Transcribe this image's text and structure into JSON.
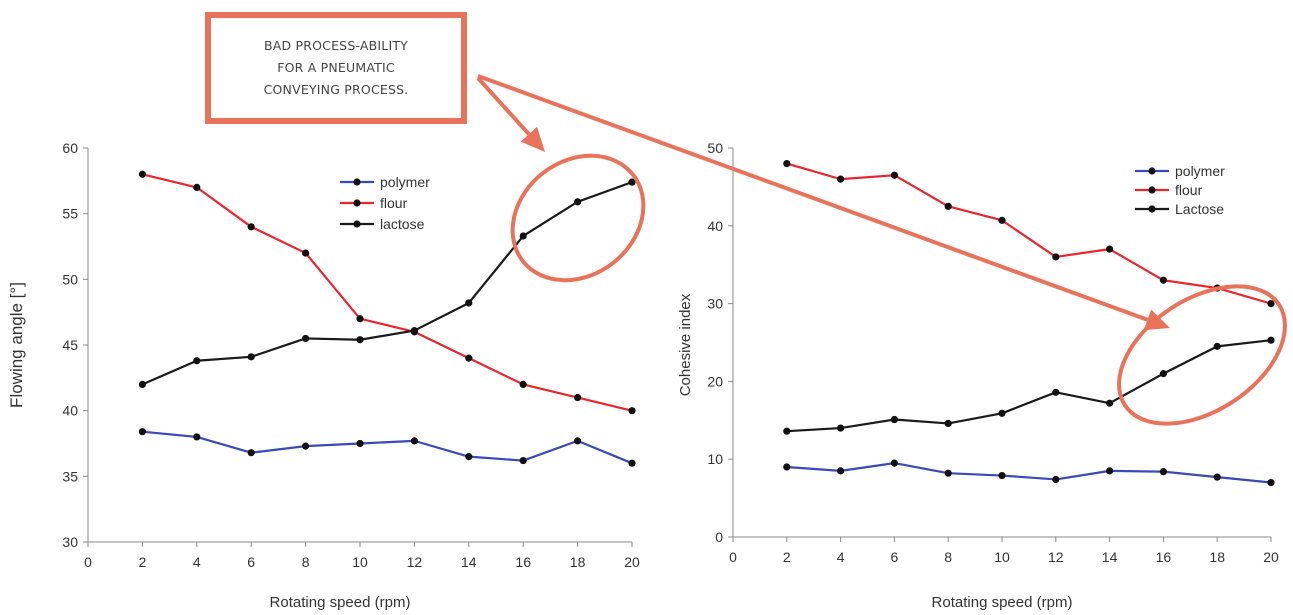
{
  "callout": {
    "lines": [
      "BAD PROCESS-ABILITY",
      "FOR A PNEUMATIC",
      "CONVEYING PROCESS."
    ]
  },
  "colors": {
    "polymer": "#3a49b8",
    "flour": "#e8262c",
    "lactose": "#1a1a1a",
    "annotation": "#e8735a"
  },
  "chart_data": [
    {
      "type": "line",
      "xlabel": "Rotating speed (rpm)",
      "ylabel": "Flowing angle [°]",
      "xlim": [
        0,
        20
      ],
      "ylim": [
        30,
        60
      ],
      "x_ticks": [
        0,
        2,
        4,
        6,
        8,
        10,
        12,
        14,
        16,
        18,
        20
      ],
      "y_ticks": [
        30,
        35,
        40,
        45,
        50,
        55,
        60
      ],
      "grid": false,
      "legend": "top-center",
      "x": [
        2,
        4,
        6,
        8,
        10,
        12,
        14,
        16,
        18,
        20
      ],
      "series": [
        {
          "name": "polymer",
          "color": "#3a49b8",
          "values": [
            38.4,
            38.0,
            36.8,
            37.3,
            37.5,
            37.7,
            36.5,
            36.2,
            37.7,
            36.0
          ]
        },
        {
          "name": "flour",
          "color": "#e8262c",
          "values": [
            58.0,
            57.0,
            54.0,
            52.0,
            47.0,
            46.0,
            44.0,
            42.0,
            41.0,
            40.0
          ]
        },
        {
          "name": "lactose",
          "color": "#1a1a1a",
          "values": [
            42.0,
            43.8,
            44.1,
            45.5,
            45.4,
            46.1,
            48.2,
            53.3,
            55.9,
            57.4
          ]
        }
      ]
    },
    {
      "type": "line",
      "xlabel": "Rotating speed (rpm)",
      "ylabel": "Cohesive index",
      "xlim": [
        0,
        20
      ],
      "ylim": [
        0,
        50
      ],
      "x_ticks": [
        0,
        2,
        4,
        6,
        8,
        10,
        12,
        14,
        16,
        18,
        20
      ],
      "y_ticks": [
        0,
        10,
        20,
        30,
        40,
        50
      ],
      "grid": false,
      "legend": "top-right",
      "x": [
        2,
        4,
        6,
        8,
        10,
        12,
        14,
        16,
        18,
        20
      ],
      "series": [
        {
          "name": "polymer",
          "color": "#3a49b8",
          "values": [
            9.0,
            8.5,
            9.5,
            8.2,
            7.9,
            7.4,
            8.5,
            8.4,
            7.7,
            7.0
          ]
        },
        {
          "name": "flour",
          "color": "#e8262c",
          "values": [
            48.0,
            46.0,
            46.5,
            42.5,
            40.7,
            36.0,
            37.0,
            33.0,
            32.0,
            30.0
          ]
        },
        {
          "name": "Lactose",
          "color": "#1a1a1a",
          "values": [
            13.6,
            14.0,
            15.1,
            14.6,
            15.9,
            18.6,
            17.2,
            21.0,
            24.5,
            25.3
          ]
        }
      ]
    }
  ]
}
